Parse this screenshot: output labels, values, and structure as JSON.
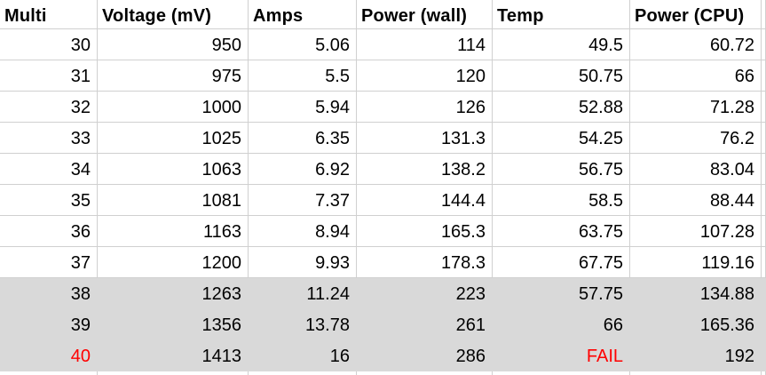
{
  "table": {
    "columns": [
      "Multi",
      "Voltage (mV)",
      "Amps",
      "Power (wall)",
      "Temp",
      "Power (CPU)"
    ],
    "rows": [
      {
        "multi": "30",
        "voltage": "950",
        "amps": "5.06",
        "power_wall": "114",
        "temp": "49.5",
        "power_cpu": "60.72",
        "shaded": false,
        "red_fields": []
      },
      {
        "multi": "31",
        "voltage": "975",
        "amps": "5.5",
        "power_wall": "120",
        "temp": "50.75",
        "power_cpu": "66",
        "shaded": false,
        "red_fields": []
      },
      {
        "multi": "32",
        "voltage": "1000",
        "amps": "5.94",
        "power_wall": "126",
        "temp": "52.88",
        "power_cpu": "71.28",
        "shaded": false,
        "red_fields": []
      },
      {
        "multi": "33",
        "voltage": "1025",
        "amps": "6.35",
        "power_wall": "131.3",
        "temp": "54.25",
        "power_cpu": "76.2",
        "shaded": false,
        "red_fields": []
      },
      {
        "multi": "34",
        "voltage": "1063",
        "amps": "6.92",
        "power_wall": "138.2",
        "temp": "56.75",
        "power_cpu": "83.04",
        "shaded": false,
        "red_fields": []
      },
      {
        "multi": "35",
        "voltage": "1081",
        "amps": "7.37",
        "power_wall": "144.4",
        "temp": "58.5",
        "power_cpu": "88.44",
        "shaded": false,
        "red_fields": []
      },
      {
        "multi": "36",
        "voltage": "1163",
        "amps": "8.94",
        "power_wall": "165.3",
        "temp": "63.75",
        "power_cpu": "107.28",
        "shaded": false,
        "red_fields": []
      },
      {
        "multi": "37",
        "voltage": "1200",
        "amps": "9.93",
        "power_wall": "178.3",
        "temp": "67.75",
        "power_cpu": "119.16",
        "shaded": false,
        "red_fields": []
      },
      {
        "multi": "38",
        "voltage": "1263",
        "amps": "11.24",
        "power_wall": "223",
        "temp": "57.75",
        "power_cpu": "134.88",
        "shaded": true,
        "red_fields": []
      },
      {
        "multi": "39",
        "voltage": "1356",
        "amps": "13.78",
        "power_wall": "261",
        "temp": "66",
        "power_cpu": "165.36",
        "shaded": true,
        "red_fields": []
      },
      {
        "multi": "40",
        "voltage": "1413",
        "amps": "16",
        "power_wall": "286",
        "temp": "FAIL",
        "power_cpu": "192",
        "shaded": true,
        "red_fields": [
          "multi",
          "temp"
        ]
      }
    ]
  },
  "colors": {
    "background": "#ffffff",
    "text": "#000000",
    "gridline": "#d0d0d0",
    "shaded_row_bg": "#d9d9d9",
    "alert_text": "#ff0000"
  }
}
